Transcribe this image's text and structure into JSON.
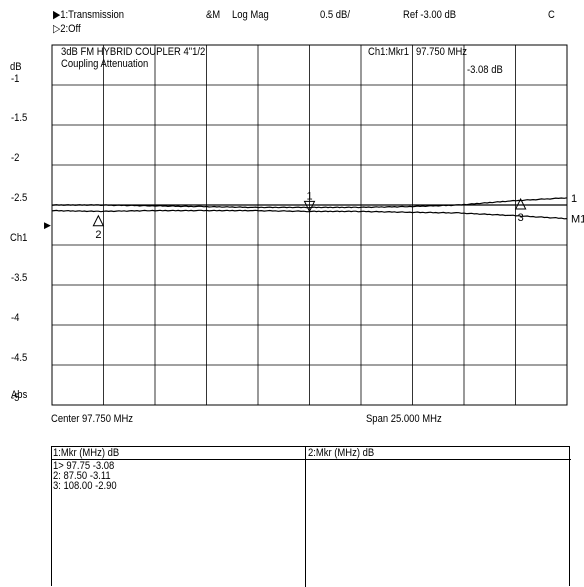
{
  "header": {
    "channel1": "▶1:Transmission",
    "channel2": "▷2:Off",
    "format_code": "&M",
    "format": "Log Mag",
    "scale": "0.5 dB/",
    "ref": "Ref  -3.00 dB",
    "corner": "C"
  },
  "chart_data": {
    "type": "line",
    "title": "3dB FM HYBRID COUPLER 4\"1/2",
    "subtitle": "Coupling Attenuation",
    "ylabel_top": "dB",
    "ylabel_bottom": "Abs",
    "y_tick_labels": [
      "-1",
      "-1.5",
      "-2",
      "-2.5",
      "Ch1",
      "-3.5",
      "-4",
      "-4.5",
      "-5"
    ],
    "ylim": [
      -5.5,
      -1
    ],
    "xlim": [
      85.25,
      110.25
    ],
    "x_unit": "MHz",
    "center_label": "Center 97.750 MHz",
    "span_label": "Span 25.000 MHz",
    "grid": true,
    "series": [
      {
        "name": "1",
        "x": [
          85.25,
          87.5,
          90,
          92.5,
          95,
          97.75,
          100,
          102.5,
          105,
          107.5,
          110.25
        ],
        "values": [
          -3.0,
          -3.0,
          -3.01,
          -3.02,
          -3.03,
          -3.03,
          -3.03,
          -3.02,
          -3.0,
          -2.95,
          -2.91
        ]
      },
      {
        "name": "M1",
        "x": [
          85.25,
          87.5,
          90,
          92.5,
          95,
          97.75,
          100,
          102.5,
          105,
          107.5,
          110.25
        ],
        "values": [
          -3.07,
          -3.08,
          -3.07,
          -3.07,
          -3.07,
          -3.08,
          -3.08,
          -3.09,
          -3.1,
          -3.13,
          -3.17
        ]
      }
    ],
    "markers": [
      {
        "id": "1",
        "x": 97.75,
        "y": -3.08,
        "style": "down"
      },
      {
        "id": "2",
        "x": 87.5,
        "y": -3.11,
        "style": "up"
      },
      {
        "id": "3",
        "x": 108.0,
        "y": -2.9,
        "style": "up"
      }
    ],
    "active_marker": {
      "label": "Ch1:Mkr1",
      "freq": "97.750 MHz",
      "value": "-3.08 dB"
    },
    "ch1_pointer": "▶"
  },
  "marker_tables": [
    {
      "header": "1:Mkr (MHz)   dB",
      "rows": [
        "1>  97.75   -3.08",
        "2:  87.50   -3.11",
        "3:  108.00   -2.90"
      ]
    },
    {
      "header": "2:Mkr (MHz)   dB",
      "rows": []
    }
  ]
}
